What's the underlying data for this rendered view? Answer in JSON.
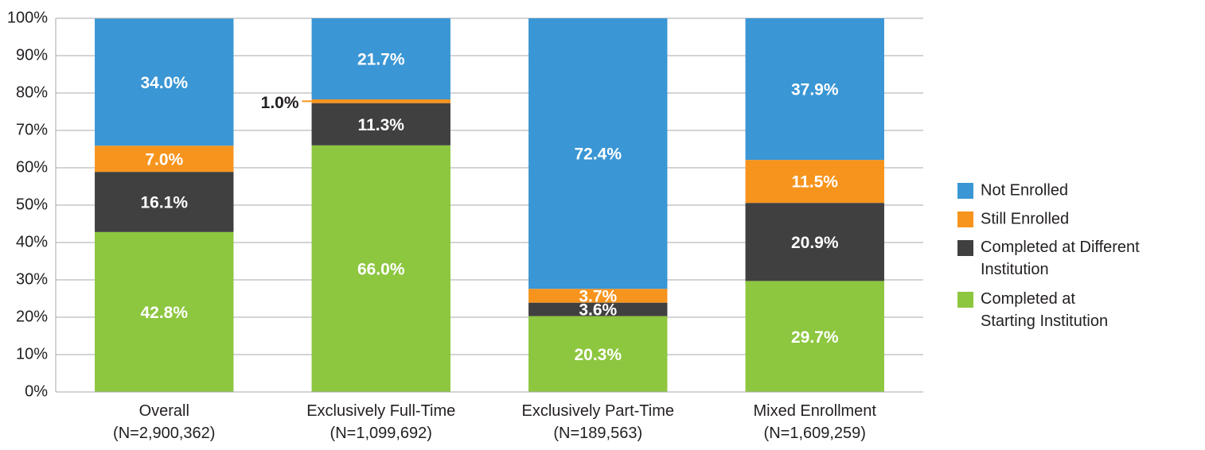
{
  "chart_data": {
    "type": "stacked_bar",
    "categories": [
      "Overall\n(N=2,900,362)",
      "Exclusively Full-Time\n(N=1,099,692)",
      "Exclusively Part-Time\n(N=189,563)",
      "Mixed Enrollment\n(N=1,609,259)"
    ],
    "series": [
      {
        "name": "Completed at\nStarting Institution",
        "color": "#8dc63f",
        "values": [
          42.8,
          66.0,
          20.3,
          29.7
        ],
        "value_labels": [
          "42.8%",
          "66.0%",
          "20.3%",
          "29.7%"
        ]
      },
      {
        "name": "Completed at Different\nInstitution",
        "color": "#404041",
        "values": [
          16.1,
          11.3,
          3.6,
          20.9
        ],
        "value_labels": [
          "16.1%",
          "11.3%",
          "3.6%",
          "20.9%"
        ]
      },
      {
        "name": "Still Enrolled",
        "color": "#f7941d",
        "values": [
          7.0,
          1.0,
          3.7,
          11.5
        ],
        "value_labels": [
          "7.0%",
          "1.0%",
          "3.7%",
          "11.5%"
        ]
      },
      {
        "name": "Not Enrolled",
        "color": "#3a96d4",
        "values": [
          34.0,
          21.7,
          72.4,
          37.9
        ],
        "value_labels": [
          "34.0%",
          "21.7%",
          "72.4%",
          "37.9%"
        ]
      }
    ],
    "ylim": [
      0,
      100
    ],
    "yticks": [
      {
        "value": 0,
        "label": "0%"
      },
      {
        "value": 10,
        "label": "10%"
      },
      {
        "value": 20,
        "label": "20%"
      },
      {
        "value": 30,
        "label": "30%"
      },
      {
        "value": 40,
        "label": "40%"
      },
      {
        "value": 50,
        "label": "50%"
      },
      {
        "value": 60,
        "label": "60%"
      },
      {
        "value": 70,
        "label": "70%"
      },
      {
        "value": 80,
        "label": "80%"
      },
      {
        "value": 90,
        "label": "90%"
      },
      {
        "value": 100,
        "label": "100%"
      }
    ],
    "grid": true,
    "legend": "right"
  }
}
